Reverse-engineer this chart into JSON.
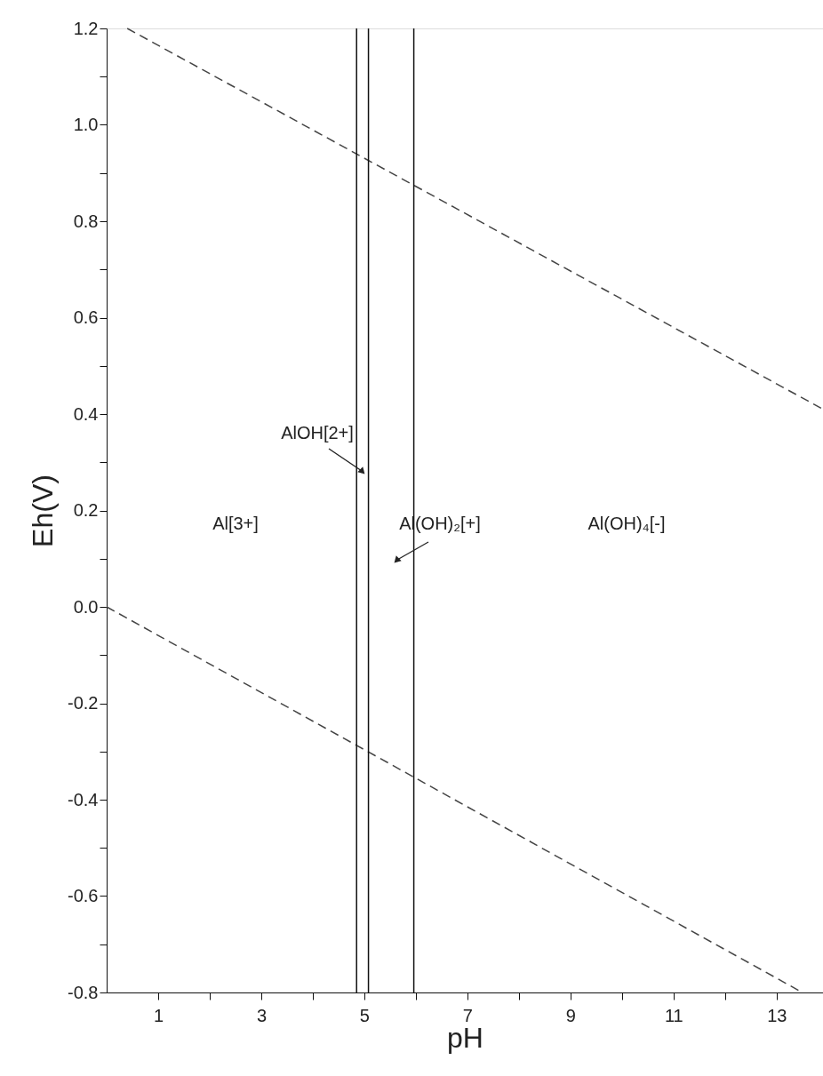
{
  "chart_data": {
    "type": "line",
    "xlabel": "pH",
    "ylabel": "Eh(V)",
    "xlim": [
      0,
      13.9
    ],
    "ylim": [
      -0.8,
      1.2
    ],
    "xticks": [
      {
        "value": 1,
        "label": "1"
      },
      {
        "value": 2,
        "label": null
      },
      {
        "value": 3,
        "label": "3"
      },
      {
        "value": 4,
        "label": null
      },
      {
        "value": 5,
        "label": "5"
      },
      {
        "value": 6,
        "label": null
      },
      {
        "value": 7,
        "label": "7"
      },
      {
        "value": 8,
        "label": null
      },
      {
        "value": 9,
        "label": "9"
      },
      {
        "value": 10,
        "label": null
      },
      {
        "value": 11,
        "label": "11"
      },
      {
        "value": 12,
        "label": null
      },
      {
        "value": 13,
        "label": "13"
      }
    ],
    "yticks": [
      {
        "value": 1.2,
        "label": "1.2"
      },
      {
        "value": 1.1,
        "label": null
      },
      {
        "value": 1.0,
        "label": "1.0"
      },
      {
        "value": 0.9,
        "label": null
      },
      {
        "value": 0.8,
        "label": "0.8"
      },
      {
        "value": 0.7,
        "label": null
      },
      {
        "value": 0.6,
        "label": "0.6"
      },
      {
        "value": 0.5,
        "label": null
      },
      {
        "value": 0.4,
        "label": "0.4"
      },
      {
        "value": 0.3,
        "label": null
      },
      {
        "value": 0.2,
        "label": "0.2"
      },
      {
        "value": 0.1,
        "label": null
      },
      {
        "value": 0.0,
        "label": "0.0"
      },
      {
        "value": -0.1,
        "label": null
      },
      {
        "value": -0.2,
        "label": "-0.2"
      },
      {
        "value": -0.3,
        "label": null
      },
      {
        "value": -0.4,
        "label": "-0.4"
      },
      {
        "value": -0.5,
        "label": null
      },
      {
        "value": -0.6,
        "label": "-0.6"
      },
      {
        "value": -0.7,
        "label": null
      },
      {
        "value": -0.8,
        "label": "-0.8"
      }
    ],
    "series": [
      {
        "color": "#444444",
        "x": [
          0.4,
          13.9
        ],
        "values": [
          1.2,
          0.41
        ]
      },
      {
        "color": "#444444",
        "x": [
          0,
          13.5
        ],
        "values": [
          0,
          -0.8
        ]
      }
    ],
    "line_style": "dashed",
    "marker": "none",
    "grid": false,
    "ref_lines": [
      {
        "axis": "x",
        "value": 4.85,
        "color": "#111111"
      },
      {
        "axis": "x",
        "value": 5.08,
        "color": "#111111"
      },
      {
        "axis": "x",
        "value": 5.96,
        "color": "#111111"
      }
    ],
    "annotations": [
      "Al[3+]",
      "AlOH[2+]",
      "Al(OH)₂[+]",
      "Al(OH)₄[-]"
    ]
  }
}
